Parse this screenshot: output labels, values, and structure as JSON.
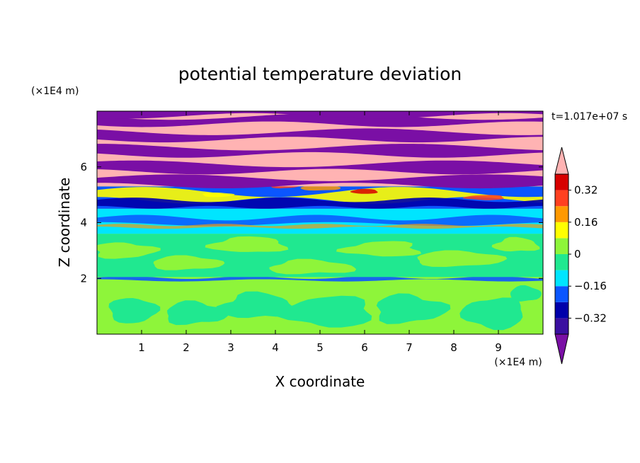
{
  "chart_data": {
    "type": "heatmap",
    "title": "potential temperature deviation",
    "xlabel": "X coordinate",
    "ylabel": "Z coordinate",
    "x_unit": "(×1E4 m)",
    "y_unit": "(×1E4 m)",
    "time_label": "t=1.017e+07 s",
    "xlim": [
      0,
      10
    ],
    "ylim": [
      0,
      8
    ],
    "x_ticks": [
      1,
      2,
      3,
      4,
      5,
      6,
      7,
      8,
      9
    ],
    "y_ticks": [
      2,
      4,
      6
    ],
    "colorbar": {
      "levels": [
        -0.4,
        -0.32,
        -0.24,
        -0.16,
        -0.08,
        0,
        0.08,
        0.16,
        0.24,
        0.32,
        0.4
      ],
      "tick_labels": [
        "0.32",
        "0.16",
        "0",
        "−0.16",
        "−0.32"
      ],
      "tick_values": [
        0.32,
        0.16,
        0,
        -0.16,
        -0.32
      ],
      "colors": [
        "#7a0fa5",
        "#3a0fa0",
        "#0000aa",
        "#0b56ff",
        "#00e5ff",
        "#20e890",
        "#8ef53a",
        "#ffff00",
        "#ff9900",
        "#ff4020",
        "#d70000",
        "#ffb3b3"
      ]
    },
    "bands": [
      {
        "z0": 0.0,
        "z1": 1.9,
        "class": "near-zero",
        "dominant": "#8ef53a",
        "secondary": "#20e890"
      },
      {
        "z0": 1.9,
        "z1": 2.05,
        "class": "thin negative streak",
        "dominant": "#0b56ff"
      },
      {
        "z0": 2.05,
        "z1": 3.6,
        "class": "near-zero",
        "dominant": "#20e890",
        "secondary": "#8ef53a"
      },
      {
        "z0": 3.6,
        "z1": 4.5,
        "class": "slightly negative",
        "dominant": "#00e5ff",
        "secondary": "#0b56ff"
      },
      {
        "z0": 4.5,
        "z1": 5.3,
        "class": "mixed",
        "dominant": "#0b56ff",
        "secondary": "#ffff00"
      },
      {
        "z0": 5.3,
        "z1": 8.0,
        "class": "alternating extremes",
        "dominant": "#ffb3b3",
        "secondary": "#7a0fa5"
      }
    ]
  }
}
